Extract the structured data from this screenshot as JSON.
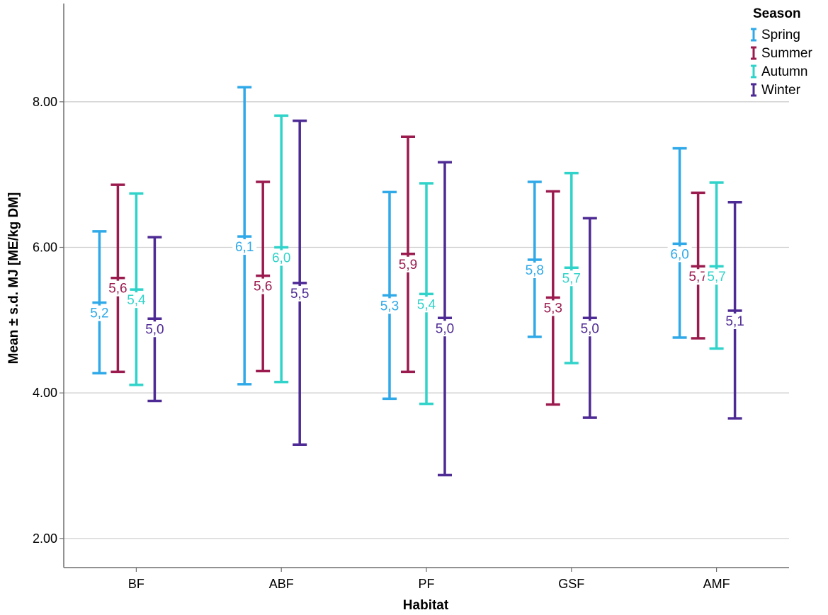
{
  "chart_data": {
    "type": "error-bar",
    "xlabel": "Habitat",
    "ylabel": "Mean ± s.d. MJ [ME/kg DM]",
    "ylim": [
      1.6,
      9.35
    ],
    "y_ticks": [
      "2.00",
      "4.00",
      "6.00",
      "8.00"
    ],
    "y_tick_values": [
      2,
      4,
      6,
      8
    ],
    "grid": "horizontal",
    "categories": [
      "BF",
      "ABF",
      "PF",
      "GSF",
      "AMF"
    ],
    "legend": {
      "title": "Season",
      "position": "top-right"
    },
    "series": [
      {
        "name": "Spring",
        "color": "#2fa9e8",
        "mean": [
          5.24,
          6.15,
          5.34,
          5.83,
          6.05
        ],
        "lower": [
          4.27,
          4.12,
          3.92,
          4.77,
          4.76
        ],
        "upper": [
          6.22,
          8.2,
          6.76,
          6.9,
          7.36
        ],
        "labels": [
          "5,2",
          "6,1",
          "5,3",
          "5,8",
          "6,0"
        ]
      },
      {
        "name": "Summer",
        "color": "#9b1b4f",
        "mean": [
          5.58,
          5.61,
          5.91,
          5.31,
          5.74
        ],
        "lower": [
          4.29,
          4.3,
          4.29,
          3.84,
          4.75
        ],
        "upper": [
          6.86,
          6.9,
          7.52,
          6.77,
          6.75
        ],
        "labels": [
          "5,6",
          "5,6",
          "5,9",
          "5,3",
          "5,7"
        ]
      },
      {
        "name": "Autumn",
        "color": "#2fd3c9",
        "mean": [
          5.42,
          6.0,
          5.36,
          5.72,
          5.74
        ],
        "lower": [
          4.11,
          4.15,
          3.85,
          4.41,
          4.61
        ],
        "upper": [
          6.74,
          7.81,
          6.88,
          7.02,
          6.89
        ],
        "labels": [
          "5,4",
          "6,0",
          "5,4",
          "5,7",
          "5,7"
        ]
      },
      {
        "name": "Winter",
        "color": "#4e2a94",
        "mean": [
          5.02,
          5.51,
          5.03,
          5.03,
          5.13
        ],
        "lower": [
          3.89,
          3.29,
          2.87,
          3.66,
          3.65
        ],
        "upper": [
          6.14,
          7.74,
          7.17,
          6.4,
          6.62
        ],
        "labels": [
          "5,0",
          "5,5",
          "5,0",
          "5,0",
          "5,1"
        ]
      }
    ]
  }
}
